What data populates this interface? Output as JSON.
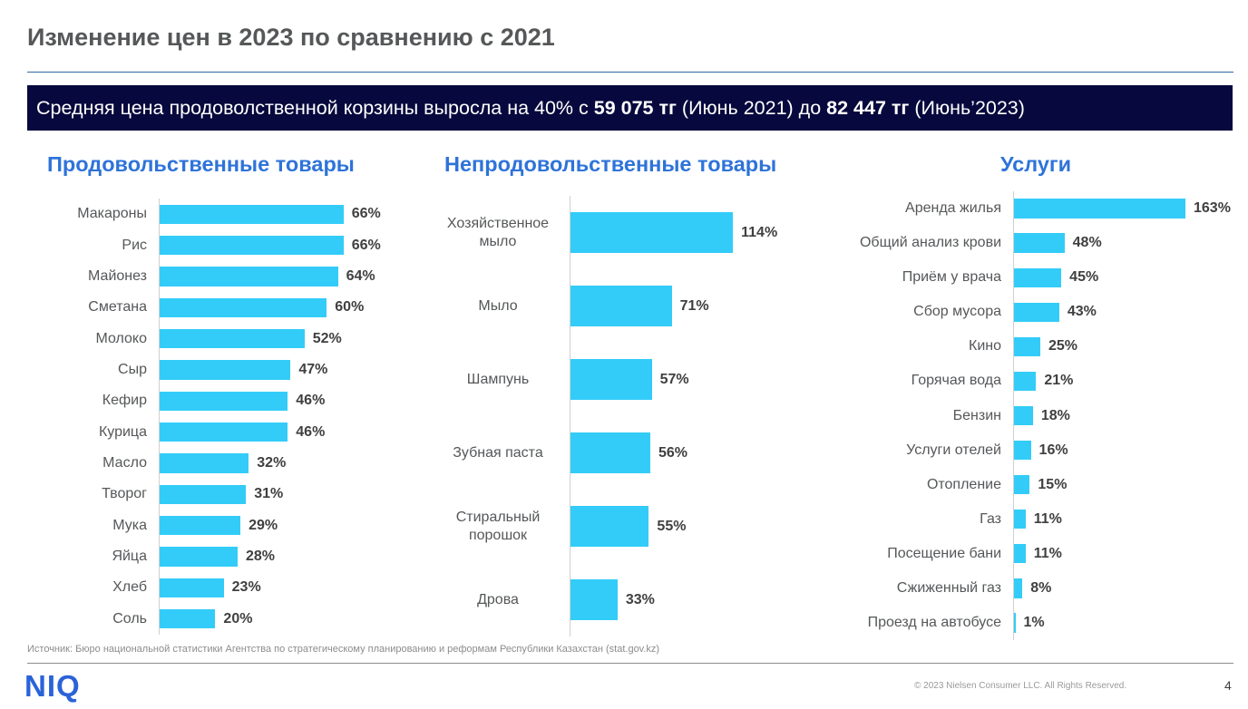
{
  "title": "Изменение цен в 2023 по сравнению с 2021",
  "banner": {
    "text1": "Средняя цена продоволственной корзины выросла на 40% с ",
    "value1": "59 075 тг",
    "text2": " (Июнь 2021) до ",
    "value2": "82 447 тг",
    "text3": " (Июнь’2023)"
  },
  "chart_data": [
    {
      "type": "bar",
      "orientation": "horizontal",
      "title": "Продовольственные товары",
      "categories": [
        "Макароны",
        "Рис",
        "Майонез",
        "Сметана",
        "Молоко",
        "Сыр",
        "Кефир",
        "Курица",
        "Масло",
        "Творог",
        "Мука",
        "Яйца",
        "Хлеб",
        "Соль"
      ],
      "values": [
        66,
        66,
        64,
        60,
        52,
        47,
        46,
        46,
        32,
        31,
        29,
        28,
        23,
        20
      ],
      "labels": [
        "66%",
        "66%",
        "64%",
        "60%",
        "52%",
        "47%",
        "46%",
        "46%",
        "32%",
        "31%",
        "29%",
        "28%",
        "23%",
        "20%"
      ],
      "xlim": [
        0,
        70
      ],
      "color": "#33ccf8"
    },
    {
      "type": "bar",
      "orientation": "horizontal",
      "title": "Непродовольственные товары",
      "categories": [
        "Хозяйственное мыло",
        "Мыло",
        "Шампунь",
        "Зубная паста",
        "Стиральный порошок",
        "Дрова"
      ],
      "values": [
        114,
        71,
        57,
        56,
        55,
        33
      ],
      "labels": [
        "114%",
        "71%",
        "57%",
        "56%",
        "55%",
        "33%"
      ],
      "xlim": [
        0,
        140
      ],
      "color": "#33ccf8"
    },
    {
      "type": "bar",
      "orientation": "horizontal",
      "title": "Услуги",
      "categories": [
        "Аренда жилья",
        "Общий анализ крови",
        "Приём у врача",
        "Сбор мусора",
        "Кино",
        "Горячая вода",
        "Бензин",
        "Услуги отелей",
        "Отопление",
        "Газ",
        "Посещение бани",
        "Сжиженный газ",
        "Проезд на автобусе"
      ],
      "values": [
        163,
        48,
        45,
        43,
        25,
        21,
        18,
        16,
        15,
        11,
        11,
        8,
        1
      ],
      "labels": [
        "163%",
        "48%",
        "45%",
        "43%",
        "25%",
        "21%",
        "18%",
        "16%",
        "15%",
        "11%",
        "11%",
        "8%",
        "1%"
      ],
      "xlim": [
        0,
        163
      ],
      "color": "#33ccf8"
    }
  ],
  "source": "Источник: Бюро национальной статистики Агентства по стратегическому планированию и реформам Республики Казахстан (stat.gov.kz)",
  "logo": "NIQ",
  "copyright": "© 2023 Nielsen Consumer LLC. All Rights Reserved.",
  "page_number": "4"
}
